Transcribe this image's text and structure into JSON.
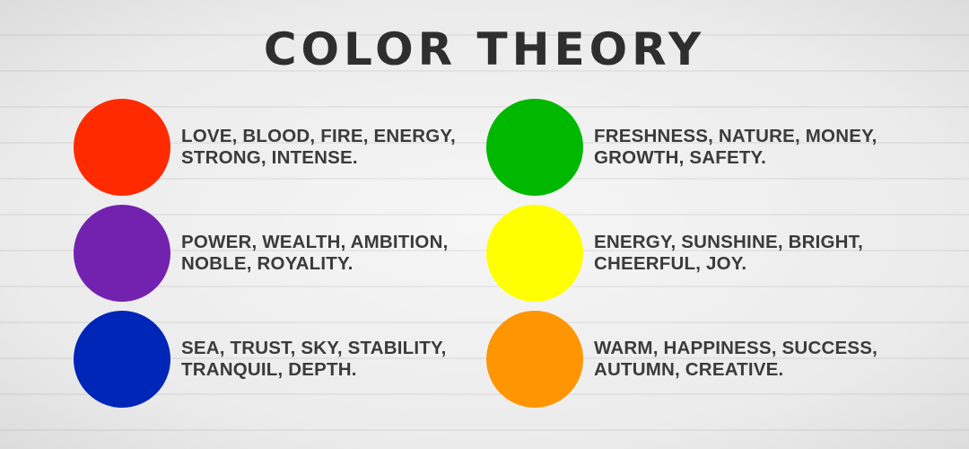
{
  "title": "COLOR THEORY",
  "items": [
    {
      "color": "#ff2a00",
      "line1": "LOVE, BLOOD, FIRE, ENERGY,",
      "line2": "STRONG, INTENSE."
    },
    {
      "color": "#7322b0",
      "line1": "POWER, WEALTH, AMBITION,",
      "line2": "NOBLE, ROYALITY."
    },
    {
      "color": "#0026b8",
      "line1": "SEA, TRUST, SKY, STABILITY,",
      "line2": "TRANQUIL, DEPTH."
    },
    {
      "color": "#00b800",
      "line1": "FRESHNESS, NATURE, MONEY,",
      "line2": "GROWTH, SAFETY."
    },
    {
      "color": "#ffff00",
      "line1": "ENERGY, SUNSHINE, BRIGHT,",
      "line2": "CHEERFUL, JOY."
    },
    {
      "color": "#ff9500",
      "line1": "WARM, HAPPINESS, SUCCESS,",
      "line2": "AUTUMN, CREATIVE."
    }
  ]
}
